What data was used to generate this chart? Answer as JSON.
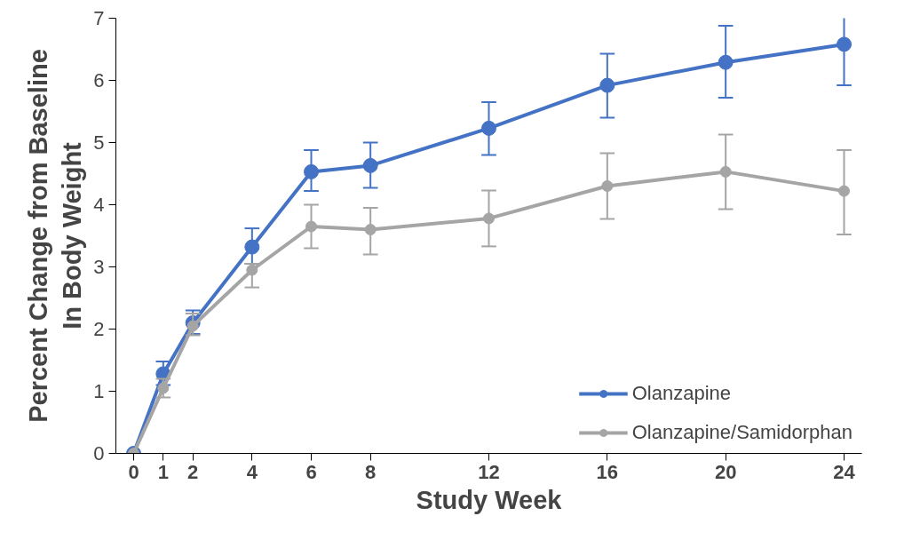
{
  "chart_data": {
    "type": "line",
    "xlabel": "Study Week",
    "ylabel": "Percent Change from Baseline\nIn Body Weight",
    "x": [
      0,
      1,
      2,
      4,
      6,
      8,
      12,
      16,
      20,
      24
    ],
    "xlim": [
      -0.6,
      24.6
    ],
    "xticks": [
      0,
      1,
      2,
      4,
      6,
      8,
      12,
      16,
      20,
      24
    ],
    "ylim": [
      0,
      7
    ],
    "yticks": [
      0,
      1,
      2,
      3,
      4,
      5,
      6,
      7
    ],
    "grid": false,
    "legend": "bottom right",
    "marker": "circle",
    "line_style": "solid",
    "series": [
      {
        "name": "Olanzapine",
        "color": "#4472c4",
        "values": [
          0,
          1.28,
          2.1,
          3.32,
          4.53,
          4.63,
          5.23,
          5.92,
          6.29,
          6.58
        ],
        "errors": [
          null,
          [
            1.1,
            1.48
          ],
          [
            1.92,
            2.3
          ],
          [
            3.05,
            3.62
          ],
          [
            4.22,
            4.88
          ],
          [
            4.27,
            5.0
          ],
          [
            4.8,
            5.65
          ],
          [
            5.4,
            6.43
          ],
          [
            5.72,
            6.88
          ],
          [
            5.92,
            7.27
          ]
        ]
      },
      {
        "name": "Olanzapine/Samidorphan",
        "color": "#a5a5a5",
        "values": [
          0,
          1.05,
          2.05,
          2.95,
          3.65,
          3.6,
          3.78,
          4.3,
          4.53,
          4.22
        ],
        "errors": [
          null,
          [
            0.9,
            1.2
          ],
          [
            1.9,
            2.25
          ],
          [
            2.67,
            3.05
          ],
          [
            3.3,
            4.0
          ],
          [
            3.2,
            3.95
          ],
          [
            3.33,
            4.23
          ],
          [
            3.77,
            4.83
          ],
          [
            3.93,
            5.13
          ],
          [
            3.52,
            4.88
          ]
        ]
      }
    ]
  }
}
